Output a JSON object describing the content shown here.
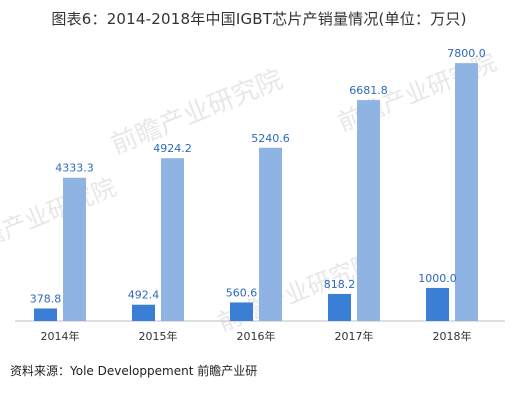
{
  "title": "图表6：2014-2018年中国IGBT芯片产销量情况(单位：万只)",
  "source": "资料来源：Yole Developpement 前瞻产业研",
  "watermark": {
    "brand": "前瞻产业研究院"
  },
  "colors": {
    "series_small": "#3A7FD5",
    "series_large": "#8FB3E3",
    "label_text": "#2E69C2",
    "axis": "#BFBFBF",
    "tick_text": "#333333"
  },
  "chart_data": {
    "type": "bar",
    "title": "图表6：2014-2018年中国IGBT芯片产销量情况(单位：万只)",
    "categories": [
      "2014年",
      "2015年",
      "2016年",
      "2017年",
      "2018年"
    ],
    "series": [
      {
        "values": [
          378.8,
          492.4,
          560.6,
          818.2,
          1000.0
        ],
        "labels": [
          "378.8",
          "492.4",
          "560.6",
          "818.2",
          "1000.0"
        ]
      },
      {
        "values": [
          4333.3,
          4924.2,
          5240.6,
          6681.8,
          7800.0
        ],
        "labels": [
          "4333.3",
          "4924.2",
          "5240.6",
          "6681.8",
          "7800.0"
        ]
      }
    ],
    "ylim": [
      0,
      8500
    ],
    "xlabel": "",
    "ylabel": "",
    "grid": false
  }
}
